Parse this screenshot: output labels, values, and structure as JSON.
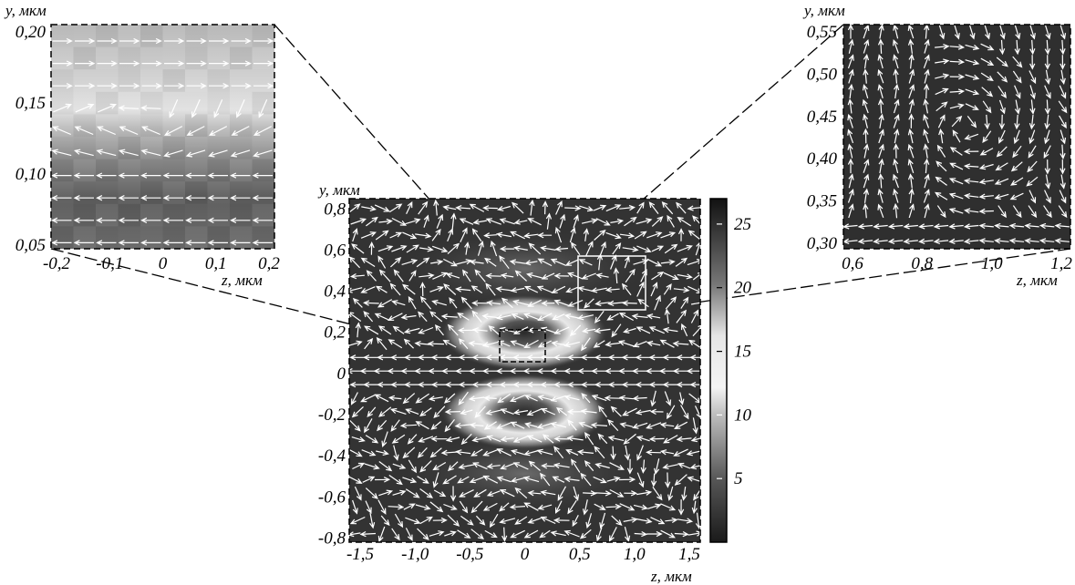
{
  "chart_data": [
    {
      "id": "main",
      "type": "heatmap",
      "title": "",
      "xlabel": "z, мкм",
      "ylabel": "y, мкм",
      "xlim": [
        -1.6,
        1.6
      ],
      "ylim": [
        -0.82,
        0.85
      ],
      "x_ticks": [
        {
          "v": -1.5,
          "label": "-1,5"
        },
        {
          "v": -1.0,
          "label": "-1,0"
        },
        {
          "v": -0.5,
          "label": "-0,5"
        },
        {
          "v": 0,
          "label": "0"
        },
        {
          "v": 0.5,
          "label": "0,5"
        },
        {
          "v": 1.0,
          "label": "1,0"
        },
        {
          "v": 1.5,
          "label": "1,5"
        }
      ],
      "y_ticks": [
        {
          "v": 0.8,
          "label": "0,8"
        },
        {
          "v": 0.6,
          "label": "0,6"
        },
        {
          "v": 0.4,
          "label": "0,4"
        },
        {
          "v": 0.2,
          "label": "0,2"
        },
        {
          "v": 0,
          "label": "0"
        },
        {
          "v": -0.2,
          "label": "-0,2"
        },
        {
          "v": -0.4,
          "label": "-0,4"
        },
        {
          "v": -0.6,
          "label": "-0,6"
        },
        {
          "v": -0.8,
          "label": "-0,8"
        }
      ],
      "intensity_ring_centers_y": [
        0.2,
        -0.2
      ],
      "zoom_regions": [
        {
          "target": "inset_left",
          "zlim": [
            -0.2,
            0.2
          ],
          "ylim": [
            0.05,
            0.2
          ]
        },
        {
          "target": "inset_right",
          "zlim": [
            0.6,
            1.2
          ],
          "ylim": [
            0.3,
            0.55
          ]
        }
      ]
    },
    {
      "id": "inset_left",
      "type": "heatmap",
      "xlabel": "z, мкм",
      "ylabel": "y, мкм",
      "xlim": [
        -0.2,
        0.2
      ],
      "ylim": [
        0.05,
        0.2
      ],
      "x_ticks": [
        {
          "v": -0.2,
          "label": "-0,2"
        },
        {
          "v": -0.1,
          "label": "-0,1"
        },
        {
          "v": 0,
          "label": "0"
        },
        {
          "v": 0.1,
          "label": "0,1"
        },
        {
          "v": 0.2,
          "label": "0,2"
        }
      ],
      "y_ticks": [
        {
          "v": 0.2,
          "label": "0,20"
        },
        {
          "v": 0.15,
          "label": "0,15"
        },
        {
          "v": 0.1,
          "label": "0,10"
        },
        {
          "v": 0.05,
          "label": "0,05"
        }
      ]
    },
    {
      "id": "inset_right",
      "type": "heatmap",
      "xlabel": "z, мкм",
      "ylabel": "y, мкм",
      "xlim": [
        0.6,
        1.2
      ],
      "ylim": [
        0.3,
        0.55
      ],
      "x_ticks": [
        {
          "v": 0.6,
          "label": "0,6"
        },
        {
          "v": 0.8,
          "label": "0,8"
        },
        {
          "v": 1.0,
          "label": "1,0"
        },
        {
          "v": 1.2,
          "label": "1,2"
        }
      ],
      "y_ticks": [
        {
          "v": 0.55,
          "label": "0,55"
        },
        {
          "v": 0.5,
          "label": "0,50"
        },
        {
          "v": 0.45,
          "label": "0,45"
        },
        {
          "v": 0.4,
          "label": "0,40"
        },
        {
          "v": 0.35,
          "label": "0,35"
        },
        {
          "v": 0.3,
          "label": "0,30"
        }
      ]
    },
    {
      "id": "colorbar",
      "type": "colorbar",
      "range": [
        0,
        27
      ],
      "ticks": [
        {
          "v": 25,
          "label": "25"
        },
        {
          "v": 20,
          "label": "20"
        },
        {
          "v": 15,
          "label": "15"
        },
        {
          "v": 10,
          "label": "10"
        },
        {
          "v": 5,
          "label": "5"
        }
      ]
    }
  ]
}
